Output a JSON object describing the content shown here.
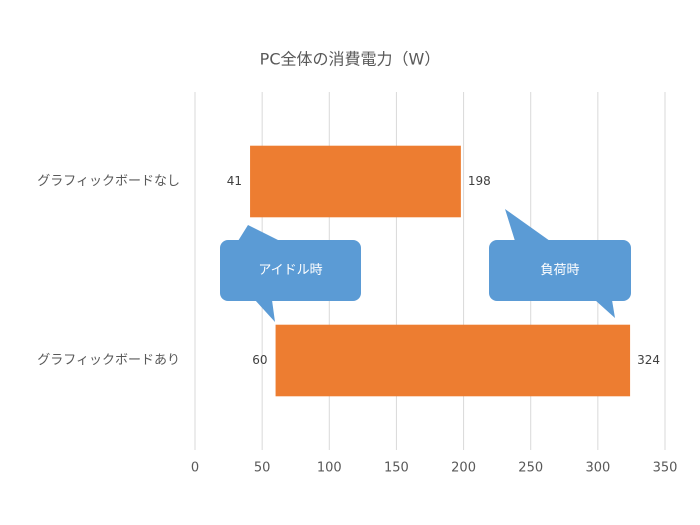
{
  "chart_data": {
    "type": "floating-bar",
    "title": "PC全体の消費電力（W）",
    "categories": [
      "グラフィックボードなし",
      "グラフィックボードあり"
    ],
    "low": [
      41,
      60
    ],
    "high": [
      198,
      324
    ],
    "color": "#ED7D31",
    "xlim": [
      0,
      350
    ],
    "xticks": [
      0,
      50,
      100,
      150,
      200,
      250,
      300,
      350
    ],
    "grid": true,
    "annotations": [
      {
        "text": "アイドル時",
        "color": "#5B9BD5"
      },
      {
        "text": "負荷時",
        "color": "#5B9BD5"
      }
    ]
  }
}
